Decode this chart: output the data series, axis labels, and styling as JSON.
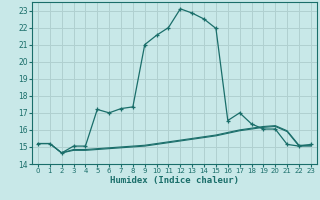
{
  "xlabel": "Humidex (Indice chaleur)",
  "bg_color": "#c8e8e8",
  "grid_color": "#b0d0d0",
  "line_color": "#1a6e6a",
  "xlim": [
    -0.5,
    23.5
  ],
  "ylim": [
    14,
    23.5
  ],
  "yticks": [
    14,
    15,
    16,
    17,
    18,
    19,
    20,
    21,
    22,
    23
  ],
  "xticks": [
    0,
    1,
    2,
    3,
    4,
    5,
    6,
    7,
    8,
    9,
    10,
    11,
    12,
    13,
    14,
    15,
    16,
    17,
    18,
    19,
    20,
    21,
    22,
    23
  ],
  "main_x": [
    0,
    1,
    2,
    3,
    4,
    5,
    6,
    7,
    8,
    9,
    10,
    11,
    12,
    13,
    14,
    15,
    16,
    17,
    18,
    19,
    20,
    21,
    22,
    23
  ],
  "main_y": [
    15.2,
    15.2,
    14.65,
    15.05,
    15.05,
    17.2,
    17.0,
    17.25,
    17.35,
    21.0,
    21.55,
    22.0,
    23.1,
    22.85,
    22.5,
    21.95,
    16.55,
    17.0,
    16.35,
    16.05,
    16.05,
    15.15,
    15.05,
    15.15
  ],
  "line2_x": [
    0,
    1,
    2,
    3,
    4,
    5,
    6,
    7,
    8,
    9,
    10,
    11,
    12,
    13,
    14,
    15,
    16,
    17,
    18,
    19,
    20,
    21,
    22,
    23
  ],
  "line2_y": [
    15.2,
    15.2,
    14.65,
    14.85,
    14.85,
    14.9,
    14.95,
    15.0,
    15.05,
    15.1,
    15.2,
    15.3,
    15.4,
    15.5,
    15.6,
    15.7,
    15.85,
    16.0,
    16.1,
    16.2,
    16.25,
    15.95,
    15.1,
    15.1
  ],
  "line3_x": [
    0,
    1,
    2,
    3,
    4,
    5,
    6,
    7,
    8,
    9,
    10,
    11,
    12,
    13,
    14,
    15,
    16,
    17,
    18,
    19,
    20,
    21,
    22,
    23
  ],
  "line3_y": [
    15.2,
    15.2,
    14.65,
    14.8,
    14.8,
    14.85,
    14.9,
    14.95,
    15.0,
    15.05,
    15.15,
    15.25,
    15.35,
    15.45,
    15.55,
    15.65,
    15.8,
    15.95,
    16.05,
    16.15,
    16.2,
    15.9,
    15.05,
    15.05
  ]
}
